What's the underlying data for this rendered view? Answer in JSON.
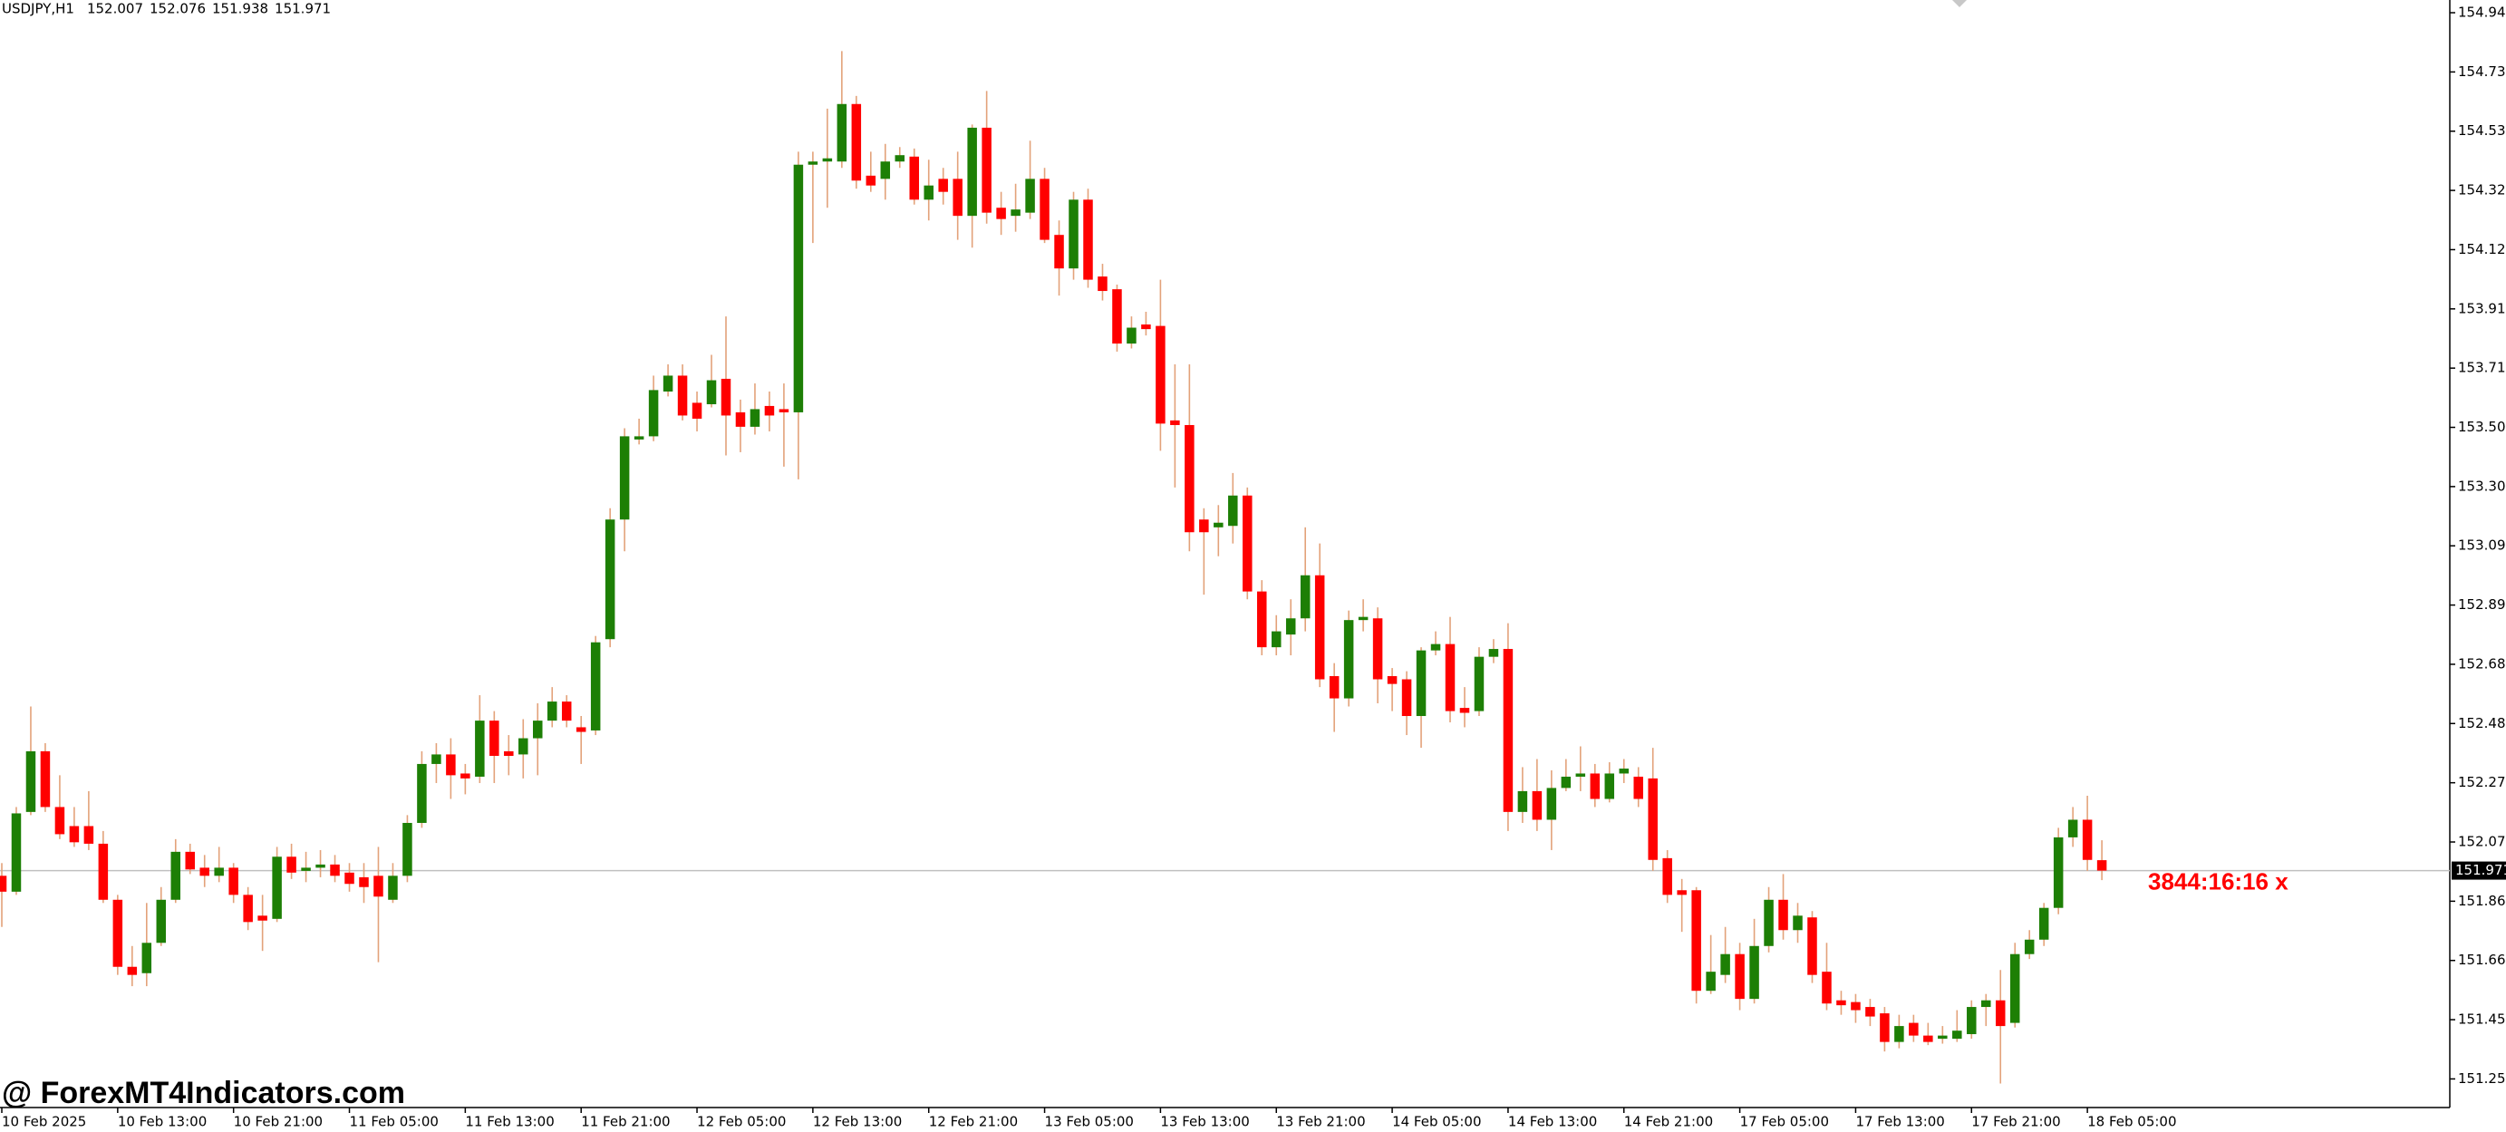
{
  "chart_data": {
    "type": "candlestick",
    "symbol": "USDJPY,H1",
    "countdown": "3844:16:16 x",
    "watermark": "@ ForexMT4Indicators.com",
    "up_color": "#1d7f05",
    "down_color": "#ff0000",
    "wick_color": "#e3a27a",
    "ylim": [
      151.151,
      154.984
    ],
    "yticks": [
      {
        "value": 154.94,
        "label": "154.940"
      },
      154.735,
      {
        "value": 154.53,
        "label": "154.530"
      },
      154.325,
      {
        "value": 154.12,
        "label": "154.120"
      },
      153.915,
      {
        "value": 153.71,
        "label": "153.710"
      },
      153.505,
      {
        "value": 153.3,
        "label": "153.300"
      },
      153.095,
      {
        "value": 152.89,
        "label": "152.890"
      },
      152.685,
      {
        "value": 152.48,
        "label": "152.480"
      },
      152.275,
      {
        "value": 152.07,
        "label": "152.070"
      },
      151.865,
      {
        "value": 151.66,
        "label": "151.660"
      },
      151.455,
      {
        "value": 151.25,
        "label": "151.250"
      }
    ],
    "categories": [
      "10 Feb 2025",
      null,
      null,
      null,
      null,
      null,
      null,
      null,
      "10 Feb 13:00",
      null,
      null,
      null,
      null,
      null,
      null,
      null,
      "10 Feb 21:00",
      null,
      null,
      null,
      null,
      null,
      null,
      null,
      "11 Feb 05:00",
      null,
      null,
      null,
      null,
      null,
      null,
      null,
      "11 Feb 13:00",
      null,
      null,
      null,
      null,
      null,
      null,
      null,
      "11 Feb 21:00",
      null,
      null,
      null,
      null,
      null,
      null,
      null,
      "12 Feb 05:00",
      null,
      null,
      null,
      null,
      null,
      null,
      null,
      "12 Feb 13:00",
      null,
      null,
      null,
      null,
      null,
      null,
      null,
      "12 Feb 21:00",
      null,
      null,
      null,
      null,
      null,
      null,
      null,
      "13 Feb 05:00",
      null,
      null,
      null,
      null,
      null,
      null,
      null,
      "13 Feb 13:00",
      null,
      null,
      null,
      null,
      null,
      null,
      null,
      "13 Feb 21:00",
      null,
      null,
      null,
      null,
      null,
      null,
      null,
      "14 Feb 05:00",
      null,
      null,
      null,
      null,
      null,
      null,
      null,
      "14 Feb 13:00",
      null,
      null,
      null,
      null,
      null,
      null,
      null,
      "14 Feb 21:00",
      null,
      null,
      null,
      null,
      null,
      null,
      null,
      "17 Feb 05:00",
      null,
      null,
      null,
      null,
      null,
      null,
      null,
      "17 Feb 13:00",
      null,
      null,
      null,
      null,
      null,
      null,
      null,
      "17 Feb 21:00",
      null,
      null,
      null,
      null,
      null,
      null,
      null,
      "18 Feb 05:00",
      null
    ],
    "ohlc": [
      [
        151.953,
        151.997,
        151.776,
        151.898
      ],
      [
        151.898,
        152.191,
        151.887,
        152.169
      ],
      [
        152.174,
        152.539,
        152.163,
        152.384
      ],
      [
        152.384,
        152.412,
        152.174,
        152.191
      ],
      [
        152.191,
        152.301,
        152.08,
        152.097
      ],
      [
        152.125,
        152.191,
        152.053,
        152.069
      ],
      [
        152.125,
        152.246,
        152.042,
        152.064
      ],
      [
        152.064,
        152.108,
        151.859,
        151.87
      ],
      [
        151.87,
        151.887,
        151.61,
        151.638
      ],
      [
        151.638,
        151.71,
        151.571,
        151.61
      ],
      [
        151.616,
        151.859,
        151.571,
        151.721
      ],
      [
        151.721,
        151.914,
        151.71,
        151.87
      ],
      [
        151.87,
        152.08,
        151.859,
        152.036
      ],
      [
        152.036,
        152.064,
        151.959,
        151.975
      ],
      [
        151.981,
        152.025,
        151.914,
        151.953
      ],
      [
        151.953,
        152.053,
        151.931,
        151.981
      ],
      [
        151.981,
        151.997,
        151.859,
        151.887
      ],
      [
        151.887,
        151.914,
        151.765,
        151.793
      ],
      [
        151.815,
        151.887,
        151.693,
        151.798
      ],
      [
        151.804,
        152.053,
        151.793,
        152.019
      ],
      [
        152.019,
        152.064,
        151.942,
        151.964
      ],
      [
        151.97,
        152.036,
        151.931,
        151.981
      ],
      [
        151.981,
        152.042,
        151.948,
        151.992
      ],
      [
        151.992,
        152.025,
        151.931,
        151.953
      ],
      [
        151.964,
        151.997,
        151.898,
        151.925
      ],
      [
        151.948,
        151.997,
        151.859,
        151.914
      ],
      [
        151.953,
        152.053,
        151.654,
        151.881
      ],
      [
        151.87,
        151.997,
        151.859,
        151.953
      ],
      [
        151.953,
        152.163,
        151.931,
        152.136
      ],
      [
        152.136,
        152.384,
        152.119,
        152.34
      ],
      [
        152.34,
        152.412,
        152.274,
        152.373
      ],
      [
        152.373,
        152.429,
        152.219,
        152.301
      ],
      [
        152.307,
        152.34,
        152.235,
        152.29
      ],
      [
        152.296,
        152.578,
        152.274,
        152.49
      ],
      [
        152.49,
        152.523,
        152.274,
        152.368
      ],
      [
        152.384,
        152.44,
        152.301,
        152.368
      ],
      [
        152.373,
        152.495,
        152.29,
        152.429
      ],
      [
        152.429,
        152.55,
        152.301,
        152.49
      ],
      [
        152.49,
        152.606,
        152.467,
        152.556
      ],
      [
        152.556,
        152.578,
        152.467,
        152.49
      ],
      [
        152.467,
        152.506,
        152.34,
        152.451
      ],
      [
        152.456,
        152.783,
        152.44,
        152.761
      ],
      [
        152.772,
        153.225,
        152.744,
        153.186
      ],
      [
        153.186,
        153.502,
        153.076,
        153.474
      ],
      [
        153.463,
        153.535,
        153.446,
        153.474
      ],
      [
        153.474,
        153.684,
        153.457,
        153.634
      ],
      [
        153.629,
        153.723,
        153.612,
        153.684
      ],
      [
        153.684,
        153.723,
        153.529,
        153.546
      ],
      [
        153.59,
        153.629,
        153.491,
        153.535
      ],
      [
        153.585,
        153.756,
        153.574,
        153.668
      ],
      [
        153.673,
        153.889,
        153.408,
        153.546
      ],
      [
        153.557,
        153.601,
        153.419,
        153.507
      ],
      [
        153.507,
        153.657,
        153.48,
        153.568
      ],
      [
        153.579,
        153.629,
        153.491,
        153.546
      ],
      [
        153.568,
        153.657,
        153.369,
        153.557
      ],
      [
        153.557,
        154.459,
        153.325,
        154.414
      ],
      [
        154.414,
        154.459,
        154.143,
        154.425
      ],
      [
        154.425,
        154.608,
        154.265,
        154.436
      ],
      [
        154.425,
        154.807,
        154.403,
        154.624
      ],
      [
        154.624,
        154.652,
        154.331,
        154.359
      ],
      [
        154.376,
        154.459,
        154.32,
        154.342
      ],
      [
        154.365,
        154.486,
        154.293,
        154.425
      ],
      [
        154.425,
        154.475,
        154.403,
        154.447
      ],
      [
        154.442,
        154.47,
        154.276,
        154.293
      ],
      [
        154.293,
        154.431,
        154.221,
        154.342
      ],
      [
        154.365,
        154.403,
        154.276,
        154.32
      ],
      [
        154.365,
        154.459,
        154.154,
        154.237
      ],
      [
        154.237,
        154.553,
        154.127,
        154.542
      ],
      [
        154.542,
        154.669,
        154.21,
        154.248
      ],
      [
        154.265,
        154.32,
        154.171,
        154.226
      ],
      [
        154.237,
        154.348,
        154.182,
        154.259
      ],
      [
        154.248,
        154.497,
        154.226,
        154.365
      ],
      [
        154.365,
        154.403,
        154.143,
        154.154
      ],
      [
        154.171,
        154.221,
        153.961,
        154.055
      ],
      [
        154.055,
        154.32,
        154.016,
        154.293
      ],
      [
        154.293,
        154.331,
        153.988,
        154.016
      ],
      [
        154.027,
        154.071,
        153.944,
        153.977
      ],
      [
        153.983,
        153.999,
        153.767,
        153.795
      ],
      [
        153.795,
        153.889,
        153.778,
        153.85
      ],
      [
        153.861,
        153.905,
        153.823,
        153.845
      ],
      [
        153.856,
        154.016,
        153.424,
        153.518
      ],
      [
        153.529,
        153.723,
        153.297,
        153.513
      ],
      [
        153.513,
        153.723,
        153.076,
        153.142
      ],
      [
        153.186,
        153.225,
        152.926,
        153.142
      ],
      [
        153.159,
        153.236,
        153.059,
        153.175
      ],
      [
        153.164,
        153.347,
        153.103,
        153.269
      ],
      [
        153.269,
        153.297,
        152.91,
        152.937
      ],
      [
        152.937,
        152.976,
        152.716,
        152.744
      ],
      [
        152.744,
        152.855,
        152.716,
        152.799
      ],
      [
        152.788,
        152.91,
        152.716,
        152.844
      ],
      [
        152.844,
        153.159,
        152.799,
        152.993
      ],
      [
        152.993,
        153.103,
        152.606,
        152.633
      ],
      [
        152.644,
        152.689,
        152.451,
        152.567
      ],
      [
        152.567,
        152.871,
        152.539,
        152.838
      ],
      [
        152.838,
        152.91,
        152.799,
        152.849
      ],
      [
        152.844,
        152.882,
        152.55,
        152.633
      ],
      [
        152.644,
        152.672,
        152.523,
        152.617
      ],
      [
        152.633,
        152.661,
        152.44,
        152.506
      ],
      [
        152.506,
        152.744,
        152.396,
        152.733
      ],
      [
        152.733,
        152.799,
        152.716,
        152.755
      ],
      [
        152.755,
        152.849,
        152.484,
        152.523
      ],
      [
        152.534,
        152.606,
        152.467,
        152.517
      ],
      [
        152.523,
        152.744,
        152.506,
        152.711
      ],
      [
        152.711,
        152.772,
        152.689,
        152.738
      ],
      [
        152.738,
        152.827,
        152.108,
        152.174
      ],
      [
        152.174,
        152.329,
        152.136,
        152.246
      ],
      [
        152.246,
        152.357,
        152.108,
        152.147
      ],
      [
        152.147,
        152.318,
        152.042,
        152.257
      ],
      [
        152.257,
        152.357,
        152.246,
        152.296
      ],
      [
        152.296,
        152.401,
        152.246,
        152.307
      ],
      [
        152.307,
        152.34,
        152.191,
        152.219
      ],
      [
        152.219,
        152.346,
        152.207,
        152.307
      ],
      [
        152.307,
        152.357,
        152.274,
        152.324
      ],
      [
        152.296,
        152.329,
        152.191,
        152.219
      ],
      [
        152.29,
        152.396,
        151.97,
        152.008
      ],
      [
        152.014,
        152.042,
        151.859,
        151.887
      ],
      [
        151.903,
        151.942,
        151.759,
        151.887
      ],
      [
        151.903,
        151.914,
        151.511,
        151.555
      ],
      [
        151.555,
        151.748,
        151.544,
        151.621
      ],
      [
        151.61,
        151.776,
        151.582,
        151.682
      ],
      [
        151.682,
        151.721,
        151.488,
        151.527
      ],
      [
        151.527,
        151.804,
        151.511,
        151.71
      ],
      [
        151.71,
        151.914,
        151.688,
        151.87
      ],
      [
        151.87,
        151.959,
        151.732,
        151.765
      ],
      [
        151.765,
        151.859,
        151.721,
        151.815
      ],
      [
        151.809,
        151.831,
        151.582,
        151.61
      ],
      [
        151.621,
        151.721,
        151.488,
        151.511
      ],
      [
        151.522,
        151.555,
        151.472,
        151.505
      ],
      [
        151.516,
        151.544,
        151.444,
        151.488
      ],
      [
        151.499,
        151.527,
        151.433,
        151.466
      ],
      [
        151.477,
        151.499,
        151.345,
        151.378
      ],
      [
        151.378,
        151.472,
        151.356,
        151.433
      ],
      [
        151.444,
        151.472,
        151.378,
        151.4
      ],
      [
        151.4,
        151.444,
        151.367,
        151.378
      ],
      [
        151.389,
        151.433,
        151.372,
        151.4
      ],
      [
        151.389,
        151.488,
        151.378,
        151.417
      ],
      [
        151.405,
        151.522,
        151.389,
        151.499
      ],
      [
        151.499,
        151.544,
        151.433,
        151.522
      ],
      [
        151.522,
        151.627,
        151.234,
        151.433
      ],
      [
        151.444,
        151.721,
        151.428,
        151.682
      ],
      [
        151.682,
        151.765,
        151.665,
        151.732
      ],
      [
        151.732,
        151.859,
        151.71,
        151.842
      ],
      [
        151.842,
        152.119,
        151.82,
        152.086
      ],
      [
        152.086,
        152.191,
        152.053,
        152.147
      ],
      [
        152.147,
        152.23,
        151.97,
        152.008
      ],
      [
        152.007,
        152.076,
        151.938,
        151.971
      ]
    ]
  }
}
